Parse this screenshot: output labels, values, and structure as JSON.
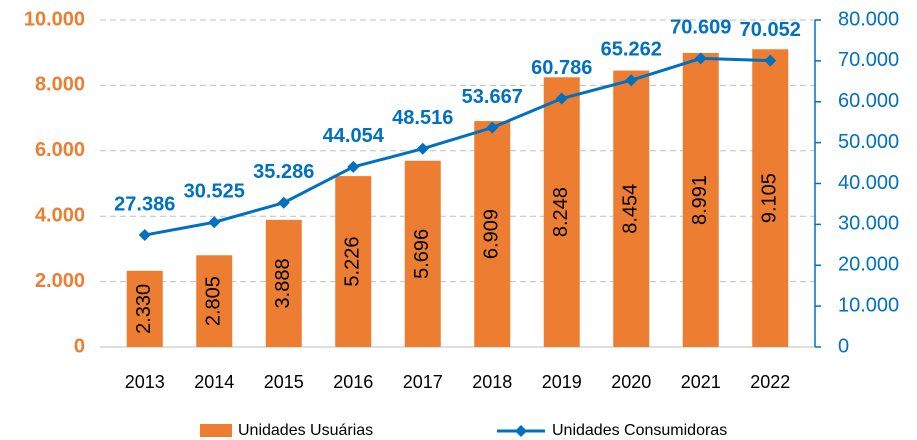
{
  "chart_data": {
    "type": "bar",
    "categories": [
      "2013",
      "2014",
      "2015",
      "2016",
      "2017",
      "2018",
      "2019",
      "2020",
      "2021",
      "2022"
    ],
    "series": [
      {
        "name": "Unidades Usuárias",
        "color": "#ed7d31",
        "type": "bar",
        "axis": "y",
        "values": [
          2330,
          2805,
          3888,
          5226,
          5696,
          6909,
          8248,
          8454,
          8991,
          9105
        ],
        "value_labels": [
          "2.330",
          "2.805",
          "3.888",
          "5.226",
          "5.696",
          "6.909",
          "8.248",
          "8.454",
          "8.991",
          "9.105"
        ]
      },
      {
        "name": "Unidades Consumidoras",
        "color": "#0070c0",
        "type": "line",
        "axis": "y2",
        "values": [
          27386,
          30525,
          35286,
          44054,
          48516,
          53667,
          60786,
          65262,
          70609,
          70052
        ],
        "value_labels": [
          "27.386",
          "30.525",
          "35.286",
          "44.054",
          "48.516",
          "53.667",
          "60.786",
          "65.262",
          "70.609",
          "70.052"
        ]
      }
    ],
    "ylim": [
      0,
      10000
    ],
    "yticks": [
      0,
      {
        "value": 2000,
        "label": "2.000"
      },
      {
        "value": 4000,
        "label": "4.000"
      },
      {
        "value": 6000,
        "label": "6.000"
      },
      {
        "value": 8000,
        "label": "8.000"
      },
      {
        "value": 10000,
        "label": "10.000"
      }
    ],
    "y2lim": [
      0,
      80000
    ],
    "y2ticks": [
      0,
      {
        "value": 10000,
        "label": "10.000"
      },
      {
        "value": 20000,
        "label": "20.000"
      },
      {
        "value": 30000,
        "label": "30.000"
      },
      {
        "value": 40000,
        "label": "40.000"
      },
      {
        "value": 50000,
        "label": "50.000"
      },
      {
        "value": 60000,
        "label": "60.000"
      },
      {
        "value": 70000,
        "label": "70.000"
      },
      {
        "value": 80000,
        "label": "80.000"
      }
    ],
    "grid": true,
    "legend": "bottom"
  }
}
